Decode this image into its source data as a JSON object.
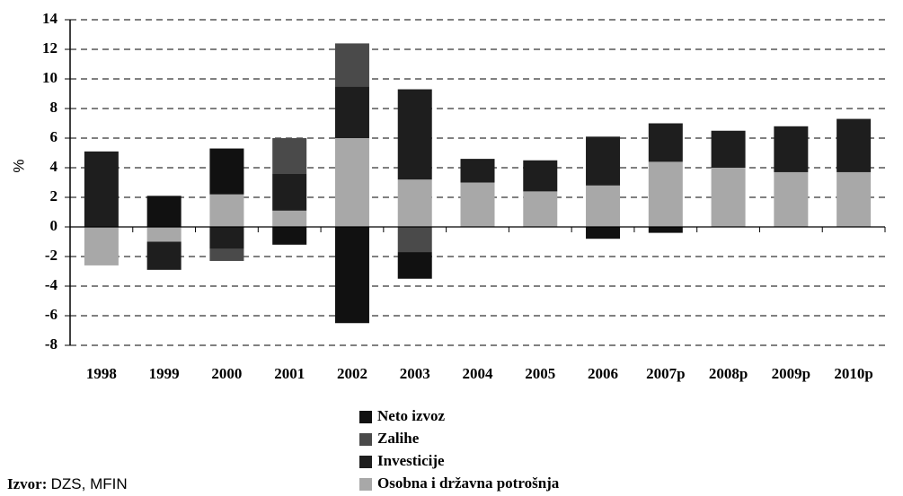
{
  "chart_data": {
    "type": "stacked_bar",
    "y_label": "%",
    "categories": [
      "1998",
      "1999",
      "2000",
      "2001",
      "2002",
      "2003",
      "2004",
      "2005",
      "2006",
      "2007p",
      "2008p",
      "2009p",
      "2010p"
    ],
    "series": [
      {
        "name": "Neto izvoz",
        "color": "#111111",
        "values": [
          0,
          2.1,
          3.1,
          -1.2,
          -6.5,
          -1.8,
          0,
          0,
          -0.8,
          -0.4,
          0,
          0,
          0
        ]
      },
      {
        "name": "Zalihe",
        "color": "#4a4a4a",
        "values": [
          0,
          0,
          -0.8,
          2.4,
          2.9,
          -1.7,
          0,
          0,
          0,
          0,
          0,
          0,
          0
        ]
      },
      {
        "name": "Investicije",
        "color": "#1e1e1e",
        "values": [
          5.1,
          -1.9,
          -1.5,
          2.5,
          3.5,
          6.1,
          1.6,
          2.1,
          3.3,
          2.6,
          2.5,
          3.1,
          3.6
        ]
      },
      {
        "name": "Osobna i državna potrošnja",
        "color": "#a8a8a8",
        "values": [
          -2.6,
          -1.0,
          2.2,
          1.1,
          6.0,
          3.2,
          3.0,
          2.4,
          2.8,
          4.4,
          4.0,
          3.7,
          3.7
        ]
      }
    ],
    "ylim": [
      -8,
      14
    ],
    "yticks": [
      -8,
      -6,
      -4,
      -2,
      0,
      2,
      4,
      6,
      8,
      10,
      12,
      14
    ],
    "grid": true,
    "source": {
      "label": "Izvor:",
      "text": "DZS, MFIN"
    }
  }
}
